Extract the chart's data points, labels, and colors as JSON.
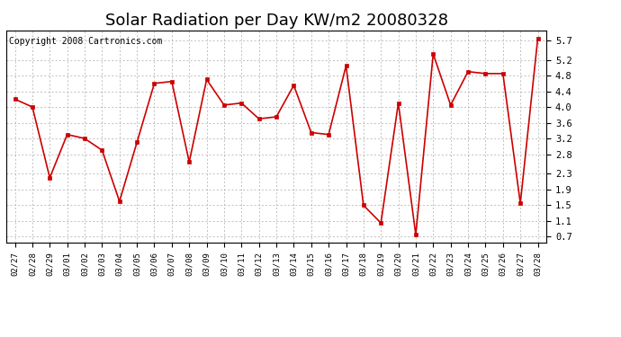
{
  "title": "Solar Radiation per Day KW/m2 20080328",
  "copyright": "Copyright 2008 Cartronics.com",
  "dates": [
    "02/27",
    "02/28",
    "02/29",
    "03/01",
    "03/02",
    "03/03",
    "03/04",
    "03/05",
    "03/06",
    "03/07",
    "03/08",
    "03/09",
    "03/10",
    "03/11",
    "03/12",
    "03/13",
    "03/14",
    "03/15",
    "03/16",
    "03/17",
    "03/18",
    "03/19",
    "03/20",
    "03/21",
    "03/22",
    "03/23",
    "03/24",
    "03/25",
    "03/26",
    "03/27",
    "03/28"
  ],
  "values": [
    4.2,
    4.0,
    2.2,
    3.3,
    3.2,
    2.9,
    1.6,
    3.1,
    4.6,
    4.65,
    2.6,
    4.7,
    4.05,
    4.1,
    3.7,
    3.75,
    4.55,
    3.35,
    3.3,
    5.05,
    1.5,
    1.05,
    4.1,
    0.75,
    5.35,
    4.05,
    4.9,
    4.85,
    4.85,
    1.55,
    5.75
  ],
  "line_color": "#cc0000",
  "marker_color": "#cc0000",
  "marker": "s",
  "marker_size": 2.5,
  "bg_color": "#ffffff",
  "grid_color": "#aaaaaa",
  "yticks": [
    0.7,
    1.1,
    1.5,
    1.9,
    2.3,
    2.8,
    3.2,
    3.6,
    4.0,
    4.4,
    4.8,
    5.2,
    5.7
  ],
  "ylim": [
    0.55,
    5.95
  ],
  "title_fontsize": 13,
  "copyright_fontsize": 7
}
